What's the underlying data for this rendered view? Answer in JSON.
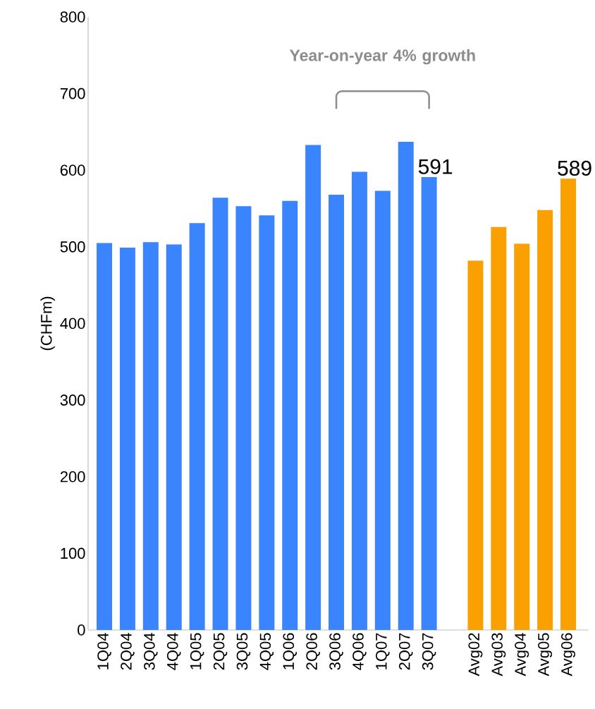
{
  "chart_data": {
    "type": "bar",
    "ylabel": "(CHFm)",
    "categories": [
      "1Q04",
      "2Q04",
      "3Q04",
      "4Q04",
      "1Q05",
      "2Q05",
      "3Q05",
      "4Q05",
      "1Q06",
      "2Q06",
      "3Q06",
      "4Q06",
      "1Q07",
      "2Q07",
      "3Q07",
      null,
      "Avg02",
      "Avg03",
      "Avg04",
      "Avg05",
      "Avg06"
    ],
    "values": [
      505,
      499,
      506,
      503,
      531,
      564,
      553,
      541,
      560,
      633,
      568,
      598,
      573,
      637,
      591,
      null,
      482,
      526,
      504,
      548,
      589
    ],
    "colors": [
      "#3a84fe",
      "#3a84fe",
      "#3a84fe",
      "#3a84fe",
      "#3a84fe",
      "#3a84fe",
      "#3a84fe",
      "#3a84fe",
      "#3a84fe",
      "#3a84fe",
      "#3a84fe",
      "#3a84fe",
      "#3a84fe",
      "#3a84fe",
      "#3a84fe",
      "#3a84fe",
      "#faa000",
      "#faa000",
      "#faa000",
      "#faa000",
      "#faa000"
    ],
    "value_labels": [
      null,
      null,
      null,
      null,
      null,
      null,
      null,
      null,
      null,
      null,
      null,
      null,
      null,
      null,
      "591",
      null,
      null,
      null,
      null,
      null,
      "589"
    ],
    "ylim": [
      0,
      800
    ],
    "yticks": [
      0,
      100,
      200,
      300,
      400,
      500,
      600,
      700,
      800
    ],
    "annotations": [
      "Year-on-year 4% growth"
    ]
  }
}
